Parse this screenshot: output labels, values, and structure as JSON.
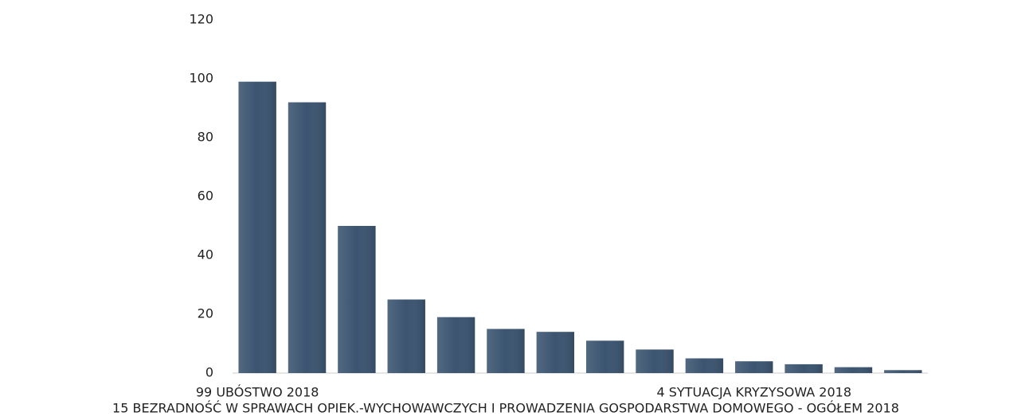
{
  "chart_data": {
    "type": "bar",
    "categories": [
      "99 UBÓSTWO 2018",
      null,
      null,
      null,
      null,
      "15 BEZRADNOŚĆ W SPRAWACH OPIEK.-WYCHOWAWCZYCH I PROWADZENIA GOSPODARSTWA DOMOWEGO - OGÓŁEM 2018",
      null,
      null,
      null,
      null,
      "4 SYTUACJA KRYZYSOWA 2018",
      null,
      null,
      null
    ],
    "values": [
      99,
      92,
      50,
      25,
      19,
      15,
      14,
      11,
      8,
      5,
      4,
      3,
      2,
      1
    ],
    "color": "#3b5470",
    "ylim": [
      0,
      120
    ],
    "yticks": [
      0,
      20,
      40,
      60,
      80,
      100,
      120
    ],
    "grid": false
  }
}
